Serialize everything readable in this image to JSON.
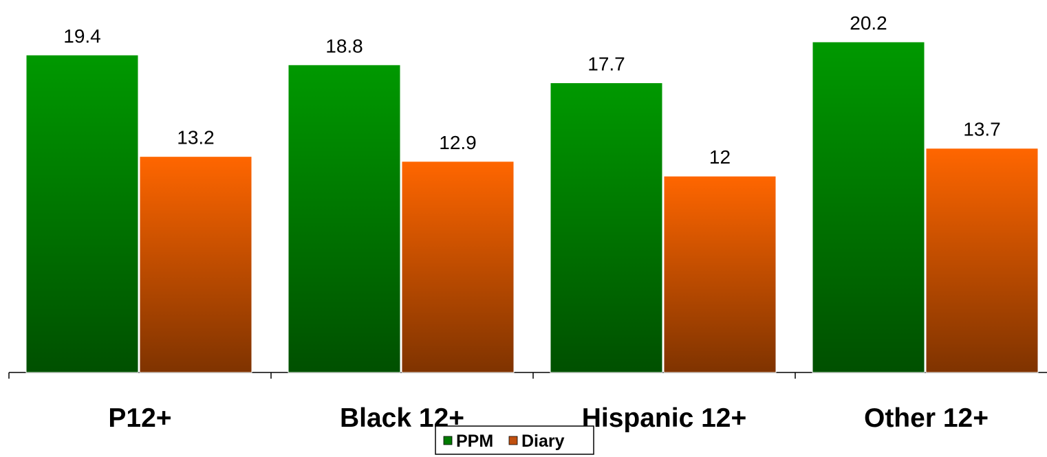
{
  "chart_data": {
    "type": "bar",
    "categories": [
      "P12+",
      "Black 12+",
      "Hispanic 12+",
      "Other 12+"
    ],
    "series": [
      {
        "name": "PPM",
        "values": [
          19.4,
          18.8,
          17.7,
          20.2
        ],
        "color": "#009900",
        "color_dark": "#005000"
      },
      {
        "name": "Diary",
        "values": [
          13.2,
          12.9,
          12,
          13.7
        ],
        "color": "#ff6600",
        "color_dark": "#803000"
      }
    ],
    "data_labels": [
      [
        "19.4",
        "18.8",
        "17.7",
        "20.2"
      ],
      [
        "13.2",
        "12.9",
        "12",
        "13.7"
      ]
    ],
    "ylim": [
      0,
      21.5
    ],
    "grid": false,
    "legend": {
      "position": "bottom",
      "items": [
        "PPM",
        "Diary"
      ]
    }
  }
}
